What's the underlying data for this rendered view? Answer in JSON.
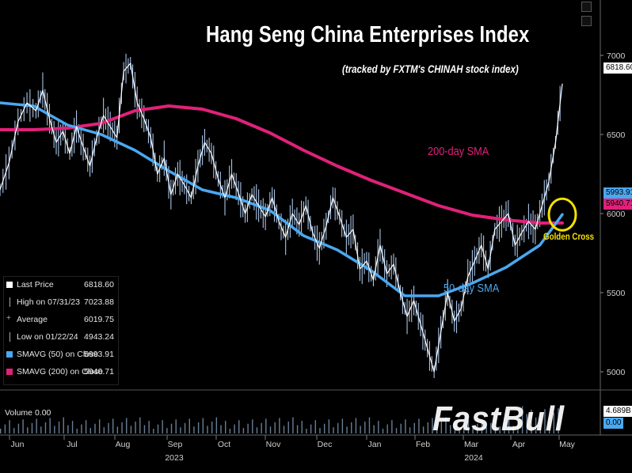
{
  "chart_data": {
    "type": "line",
    "title": "Hang Seng China Enterprises Index",
    "subtitle": "(tracked by FXTM's CHINAH stock index)",
    "y_ticks": [
      "7000",
      "6500",
      "6000",
      "5500",
      "5000"
    ],
    "y_tick_values": [
      7000,
      6500,
      6000,
      5500,
      5000
    ],
    "ylim": [
      4900,
      7180
    ],
    "month_labels": [
      "Jun",
      "Jul",
      "Aug",
      "Sep",
      "Oct",
      "Nov",
      "Dec",
      "Jan",
      "Feb",
      "Mar",
      "Apr",
      "May"
    ],
    "year_labels": [
      "2023",
      "2024"
    ],
    "price_tag": "6818.60",
    "sma50_tag": "5993.91",
    "sma200_tag": "5940.71",
    "volume_tag": "4.689B",
    "volume_tag2": "0.00",
    "annotations": {
      "sma200": "200-day SMA",
      "sma50": "50-day SMA",
      "golden_cross": "Golden Cross"
    },
    "series": [
      {
        "name": "Last Price",
        "color": "#ffffff",
        "x": [
          0,
          4,
          8,
          12,
          16,
          19,
          22,
          25,
          28,
          31,
          34,
          37,
          40,
          43,
          46,
          49,
          52,
          55,
          58,
          61,
          64,
          67,
          70,
          73,
          76,
          79,
          82,
          85,
          88,
          91,
          94,
          97,
          100,
          103,
          106,
          109,
          112,
          115,
          118,
          121,
          124,
          127,
          130,
          133,
          136,
          139,
          142,
          145,
          148,
          151,
          154,
          157,
          160,
          163,
          166,
          169,
          172,
          175,
          178,
          181,
          184,
          187,
          190,
          193,
          196,
          199,
          202,
          205,
          208,
          211,
          214,
          217,
          220,
          223,
          226,
          229,
          232,
          235,
          238,
          241,
          244,
          247,
          250
        ],
        "y": [
          6150,
          6320,
          6580,
          6700,
          6650,
          6780,
          6600,
          6450,
          6520,
          6380,
          6550,
          6420,
          6300,
          6480,
          6620,
          6550,
          6480,
          6900,
          6950,
          6700,
          6600,
          6480,
          6250,
          6350,
          6120,
          6250,
          6180,
          6100,
          6300,
          6450,
          6380,
          6220,
          6100,
          6250,
          6130,
          6000,
          6120,
          6050,
          5980,
          6100,
          5950,
          5850,
          6000,
          5930,
          6050,
          5880,
          5780,
          5920,
          6100,
          5980,
          5850,
          5900,
          5650,
          5700,
          5580,
          5800,
          5620,
          5680,
          5500,
          5350,
          5450,
          5300,
          5150,
          5000,
          5250,
          5500,
          5320,
          5400,
          5600,
          5700,
          5800,
          5650,
          5900,
          5950,
          6000,
          5800,
          5880,
          5950,
          5900,
          6050,
          6200,
          6450,
          6818.6
        ]
      },
      {
        "name": "SMAVG (50) on Close",
        "color": "#4aa8f0",
        "x": [
          0,
          15,
          30,
          45,
          60,
          75,
          90,
          105,
          120,
          135,
          150,
          165,
          180,
          195,
          210,
          225,
          240,
          250
        ],
        "y": [
          6700,
          6680,
          6560,
          6500,
          6400,
          6270,
          6150,
          6100,
          6020,
          5860,
          5770,
          5640,
          5480,
          5480,
          5560,
          5660,
          5800,
          5993.91
        ]
      },
      {
        "name": "SMAVG (200) on Close",
        "color": "#e0217a",
        "x": [
          0,
          15,
          30,
          45,
          60,
          75,
          90,
          105,
          120,
          135,
          150,
          165,
          180,
          195,
          210,
          225,
          240,
          250
        ],
        "y": [
          6530,
          6530,
          6540,
          6570,
          6650,
          6680,
          6660,
          6600,
          6510,
          6400,
          6300,
          6210,
          6130,
          6050,
          5990,
          5960,
          5940,
          5940.71
        ]
      }
    ]
  },
  "legend": {
    "rows": [
      {
        "label": "Last Price",
        "value": "6818.60"
      },
      {
        "label": "High on 07/31/23",
        "value": "7023.88"
      },
      {
        "label": "Average",
        "value": "6019.75"
      },
      {
        "label": "Low on 01/22/24",
        "value": "4943.24"
      },
      {
        "label": "SMAVG (50)  on Close",
        "value": "5993.91"
      },
      {
        "label": "SMAVG (200) on Close",
        "value": "5940.71"
      }
    ]
  },
  "volume": {
    "label": "Volume  0.00"
  },
  "watermark": "FastBull",
  "colors": {
    "background": "#000000",
    "price": "#ffffff",
    "sma50": "#4aa8f0",
    "sma200": "#e0217a",
    "golden_cross_circle": "#f5e100"
  }
}
